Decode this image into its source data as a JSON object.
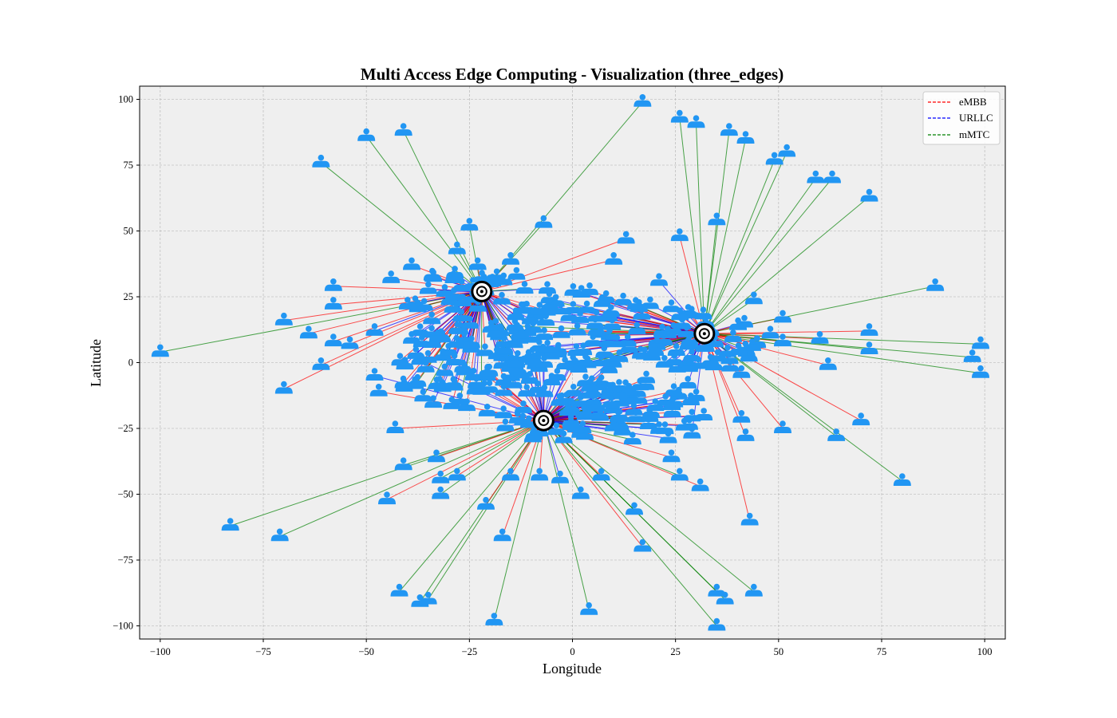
{
  "chart_data": {
    "type": "scatter",
    "title": "Multi Access Edge Computing - Visualization (three_edges)",
    "xlabel": "Longitude",
    "ylabel": "Latitude",
    "xlim": [
      -105,
      105
    ],
    "ylim": [
      -105,
      105
    ],
    "xticks": [
      -100,
      -75,
      -50,
      -25,
      0,
      25,
      50,
      75,
      100
    ],
    "yticks": [
      -100,
      -75,
      -50,
      -25,
      0,
      25,
      50,
      75,
      100
    ],
    "xtick_labels": [
      "−100",
      "−75",
      "−50",
      "−25",
      "0",
      "25",
      "50",
      "75",
      "100"
    ],
    "ytick_labels": [
      "−100",
      "−75",
      "−50",
      "−25",
      "0",
      "25",
      "50",
      "75",
      "100"
    ],
    "grid": true,
    "legend_position": "top-right",
    "background": "#efefef",
    "user_color": "#2196f3",
    "edge_marker_color": "#000000",
    "series": [
      {
        "name": "eMBB",
        "color": "#ff0000"
      },
      {
        "name": "URLLC",
        "color": "#0000ff"
      },
      {
        "name": "mMTC",
        "color": "#008000"
      }
    ],
    "edge_servers": [
      {
        "x": -22,
        "y": 27
      },
      {
        "x": 32,
        "y": 11
      },
      {
        "x": -7,
        "y": -22
      }
    ],
    "users": [
      {
        "x": -100,
        "y": 4,
        "type": "mMTC",
        "edge": 0
      },
      {
        "x": -83,
        "y": -62,
        "type": "mMTC",
        "edge": 2
      },
      {
        "x": -71,
        "y": -66,
        "type": "mMTC",
        "edge": 2
      },
      {
        "x": -70,
        "y": 16,
        "type": "eMBB",
        "edge": 0
      },
      {
        "x": -70,
        "y": -10,
        "type": "eMBB",
        "edge": 0
      },
      {
        "x": -61,
        "y": 76,
        "type": "mMTC",
        "edge": 0
      },
      {
        "x": -61,
        "y": -1,
        "type": "eMBB",
        "edge": 0
      },
      {
        "x": -58,
        "y": 22,
        "type": "eMBB",
        "edge": 0
      },
      {
        "x": -58,
        "y": 29,
        "type": "eMBB",
        "edge": 0
      },
      {
        "x": -58,
        "y": 8,
        "type": "eMBB",
        "edge": 0
      },
      {
        "x": -64,
        "y": 11,
        "type": "eMBB",
        "edge": 0
      },
      {
        "x": -50,
        "y": 86,
        "type": "mMTC",
        "edge": 0
      },
      {
        "x": -41,
        "y": 88,
        "type": "mMTC",
        "edge": 0
      },
      {
        "x": -54,
        "y": 7,
        "type": "eMBB",
        "edge": 0
      },
      {
        "x": -48,
        "y": 12,
        "type": "URLLC",
        "edge": 0
      },
      {
        "x": -48,
        "y": -5,
        "type": "URLLC",
        "edge": 2
      },
      {
        "x": -47,
        "y": -11,
        "type": "eMBB",
        "edge": 2
      },
      {
        "x": -45,
        "y": -52,
        "type": "eMBB",
        "edge": 2
      },
      {
        "x": -43,
        "y": -25,
        "type": "eMBB",
        "edge": 2
      },
      {
        "x": -41,
        "y": -39,
        "type": "mMTC",
        "edge": 2
      },
      {
        "x": -42,
        "y": -87,
        "type": "mMTC",
        "edge": 2
      },
      {
        "x": -37,
        "y": -91,
        "type": "mMTC",
        "edge": 2
      },
      {
        "x": -35,
        "y": -90,
        "type": "mMTC",
        "edge": 2
      },
      {
        "x": -39,
        "y": 37,
        "type": "eMBB",
        "edge": 0
      },
      {
        "x": -44,
        "y": 32,
        "type": "eMBB",
        "edge": 0
      },
      {
        "x": -40,
        "y": 22,
        "type": "eMBB",
        "edge": 0
      },
      {
        "x": -39,
        "y": 9,
        "type": "URLLC",
        "edge": 0
      },
      {
        "x": -37,
        "y": 1,
        "type": "URLLC",
        "edge": 2
      },
      {
        "x": -34,
        "y": 33,
        "type": "eMBB",
        "edge": 0
      },
      {
        "x": -33,
        "y": -36,
        "type": "eMBB",
        "edge": 2
      },
      {
        "x": -32,
        "y": -44,
        "type": "mMTC",
        "edge": 2
      },
      {
        "x": -32,
        "y": -50,
        "type": "mMTC",
        "edge": 2
      },
      {
        "x": -28,
        "y": -43,
        "type": "eMBB",
        "edge": 2
      },
      {
        "x": -28,
        "y": 43,
        "type": "mMTC",
        "edge": 0
      },
      {
        "x": -25,
        "y": 52,
        "type": "mMTC",
        "edge": 0
      },
      {
        "x": -23,
        "y": 37,
        "type": "eMBB",
        "edge": 0
      },
      {
        "x": -21,
        "y": -54,
        "type": "eMBB",
        "edge": 2
      },
      {
        "x": -19,
        "y": -98,
        "type": "mMTC",
        "edge": 2
      },
      {
        "x": -17,
        "y": -66,
        "type": "eMBB",
        "edge": 2
      },
      {
        "x": -15,
        "y": -43,
        "type": "eMBB",
        "edge": 2
      },
      {
        "x": -15,
        "y": 39,
        "type": "eMBB",
        "edge": 0
      },
      {
        "x": -7,
        "y": 53,
        "type": "mMTC",
        "edge": 0
      },
      {
        "x": -8,
        "y": -43,
        "type": "eMBB",
        "edge": 2
      },
      {
        "x": -3,
        "y": -44,
        "type": "URLLC",
        "edge": 2
      },
      {
        "x": 2,
        "y": -50,
        "type": "mMTC",
        "edge": 2
      },
      {
        "x": 4,
        "y": -94,
        "type": "mMTC",
        "edge": 2
      },
      {
        "x": 7,
        "y": -43,
        "type": "eMBB",
        "edge": 2
      },
      {
        "x": 10,
        "y": 39,
        "type": "eMBB",
        "edge": 0
      },
      {
        "x": 13,
        "y": 47,
        "type": "eMBB",
        "edge": 0
      },
      {
        "x": 15,
        "y": -56,
        "type": "mMTC",
        "edge": 2
      },
      {
        "x": 17,
        "y": -70,
        "type": "eMBB",
        "edge": 2
      },
      {
        "x": 17,
        "y": 99,
        "type": "mMTC",
        "edge": 0
      },
      {
        "x": 21,
        "y": 31,
        "type": "URLLC",
        "edge": 1
      },
      {
        "x": 24,
        "y": 21,
        "type": "URLLC",
        "edge": 1
      },
      {
        "x": 24,
        "y": -36,
        "type": "eMBB",
        "edge": 2
      },
      {
        "x": 26,
        "y": -43,
        "type": "mMTC",
        "edge": 2
      },
      {
        "x": 26,
        "y": 48,
        "type": "eMBB",
        "edge": 1
      },
      {
        "x": 26,
        "y": 93,
        "type": "mMTC",
        "edge": 1
      },
      {
        "x": 30,
        "y": 91,
        "type": "mMTC",
        "edge": 1
      },
      {
        "x": 31,
        "y": -47,
        "type": "eMBB",
        "edge": 2
      },
      {
        "x": 29,
        "y": -27,
        "type": "URLLC",
        "edge": 1
      },
      {
        "x": 28,
        "y": -8,
        "type": "URLLC",
        "edge": 1
      },
      {
        "x": 35,
        "y": 54,
        "type": "mMTC",
        "edge": 1
      },
      {
        "x": 35,
        "y": -87,
        "type": "mMTC",
        "edge": 2
      },
      {
        "x": 35,
        "y": -100,
        "type": "mMTC",
        "edge": 2
      },
      {
        "x": 37,
        "y": -90,
        "type": "mMTC",
        "edge": 2
      },
      {
        "x": 38,
        "y": 88,
        "type": "mMTC",
        "edge": 1
      },
      {
        "x": 42,
        "y": 85,
        "type": "mMTC",
        "edge": 1
      },
      {
        "x": 43,
        "y": -60,
        "type": "eMBB",
        "edge": 1
      },
      {
        "x": 44,
        "y": -87,
        "type": "mMTC",
        "edge": 2
      },
      {
        "x": 44,
        "y": 24,
        "type": "mMTC",
        "edge": 1
      },
      {
        "x": 41,
        "y": -4,
        "type": "eMBB",
        "edge": 1
      },
      {
        "x": 41,
        "y": -21,
        "type": "eMBB",
        "edge": 1
      },
      {
        "x": 42,
        "y": -28,
        "type": "eMBB",
        "edge": 1
      },
      {
        "x": 49,
        "y": 77,
        "type": "mMTC",
        "edge": 1
      },
      {
        "x": 52,
        "y": 80,
        "type": "mMTC",
        "edge": 1
      },
      {
        "x": 51,
        "y": 17,
        "type": "eMBB",
        "edge": 1
      },
      {
        "x": 51,
        "y": 8,
        "type": "eMBB",
        "edge": 1
      },
      {
        "x": 48,
        "y": 11,
        "type": "eMBB",
        "edge": 1
      },
      {
        "x": 51,
        "y": -25,
        "type": "eMBB",
        "edge": 1
      },
      {
        "x": 59,
        "y": 70,
        "type": "mMTC",
        "edge": 1
      },
      {
        "x": 63,
        "y": 70,
        "type": "mMTC",
        "edge": 1
      },
      {
        "x": 60,
        "y": 9,
        "type": "eMBB",
        "edge": 1
      },
      {
        "x": 62,
        "y": -1,
        "type": "eMBB",
        "edge": 1
      },
      {
        "x": 64,
        "y": -28,
        "type": "mMTC",
        "edge": 1
      },
      {
        "x": 70,
        "y": -22,
        "type": "eMBB",
        "edge": 1
      },
      {
        "x": 72,
        "y": 63,
        "type": "mMTC",
        "edge": 1
      },
      {
        "x": 72,
        "y": 12,
        "type": "eMBB",
        "edge": 1
      },
      {
        "x": 72,
        "y": 5,
        "type": "mMTC",
        "edge": 1
      },
      {
        "x": 80,
        "y": -45,
        "type": "mMTC",
        "edge": 1
      },
      {
        "x": 88,
        "y": 29,
        "type": "mMTC",
        "edge": 1
      },
      {
        "x": 99,
        "y": 7,
        "type": "mMTC",
        "edge": 1
      },
      {
        "x": 97,
        "y": 2,
        "type": "mMTC",
        "edge": 1
      },
      {
        "x": 99,
        "y": -4,
        "type": "mMTC",
        "edge": 1
      }
    ]
  }
}
